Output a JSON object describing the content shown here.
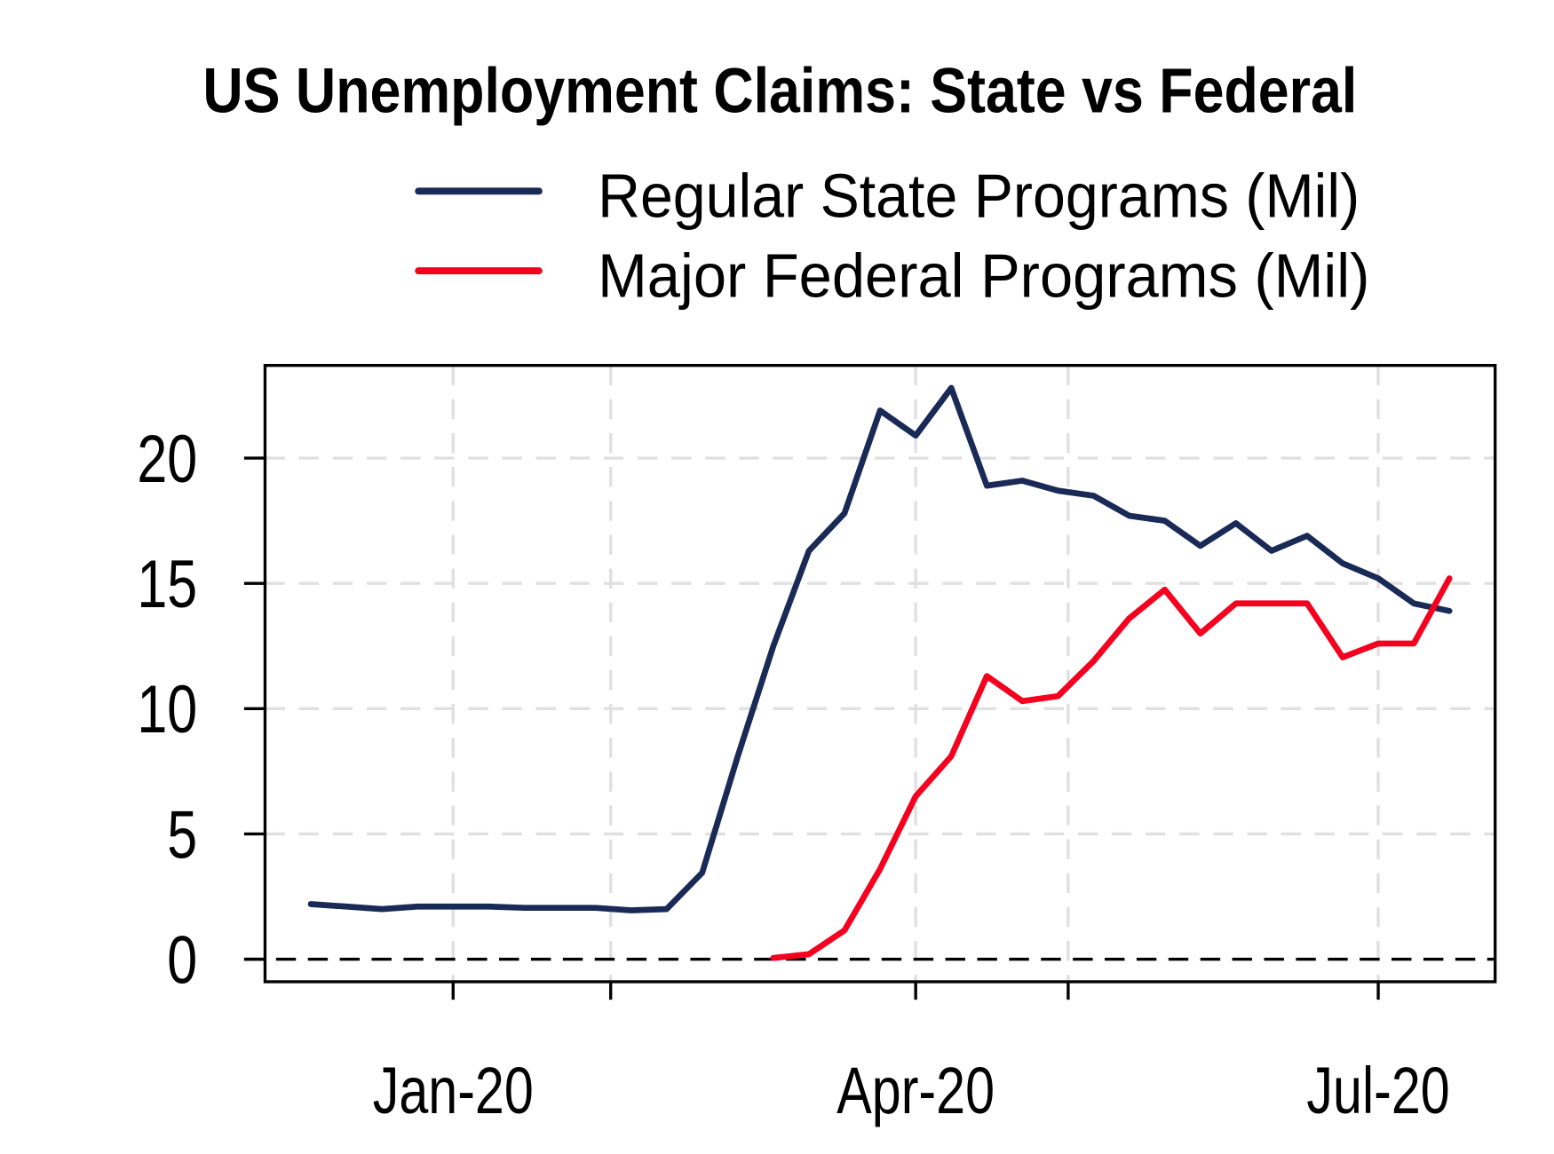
{
  "chart_data": {
    "type": "line",
    "title": "US Unemployment Claims: State vs Federal",
    "xlabel": "",
    "ylabel": "",
    "x": [
      "2019-12-04",
      "2019-12-11",
      "2019-12-18",
      "2019-12-25",
      "2020-01-01",
      "2020-01-08",
      "2020-01-15",
      "2020-01-22",
      "2020-01-29",
      "2020-02-05",
      "2020-02-12",
      "2020-02-19",
      "2020-02-26",
      "2020-03-04",
      "2020-03-11",
      "2020-03-18",
      "2020-03-25",
      "2020-04-01",
      "2020-04-08",
      "2020-04-15",
      "2020-04-22",
      "2020-04-29",
      "2020-05-06",
      "2020-05-13",
      "2020-05-20",
      "2020-05-27",
      "2020-06-03",
      "2020-06-10",
      "2020-06-17",
      "2020-06-24",
      "2020-07-01",
      "2020-07-08",
      "2020-07-15"
    ],
    "series": [
      {
        "name": "Regular State Programs (Mil)",
        "color": "#1a2a57",
        "values": [
          2.2,
          2.1,
          2.0,
          2.1,
          2.1,
          2.1,
          2.05,
          2.05,
          2.05,
          1.95,
          2.0,
          3.45,
          8.1,
          12.5,
          16.3,
          17.8,
          21.9,
          20.9,
          22.8,
          18.9,
          19.1,
          18.7,
          18.5,
          17.7,
          17.5,
          16.5,
          17.4,
          16.3,
          16.9,
          15.8,
          15.2,
          14.2,
          13.9
        ]
      },
      {
        "name": "Major Federal Programs (Mil)",
        "color": "#f5001e",
        "values": [
          null,
          null,
          null,
          null,
          null,
          null,
          null,
          null,
          null,
          null,
          null,
          null,
          null,
          0.05,
          0.2,
          1.15,
          3.6,
          6.5,
          8.1,
          11.3,
          10.3,
          10.5,
          11.9,
          13.6,
          14.75,
          13.0,
          14.2,
          14.2,
          14.2,
          12.05,
          12.6,
          12.6,
          15.2
        ]
      }
    ],
    "xlim": [
      "2019-11-25",
      "2020-07-24"
    ],
    "ylim": [
      -0.9,
      23.7
    ],
    "yticks": [
      0,
      5,
      10,
      15,
      20
    ],
    "ytick_labels": [
      "0",
      "5",
      "10",
      "15",
      "20"
    ],
    "xticks": [
      {
        "date": "2020-01-01",
        "label": "Jan-20"
      },
      {
        "date": "2020-02-01",
        "label": ""
      },
      {
        "date": "2020-04-01",
        "label": "Apr-20"
      },
      {
        "date": "2020-05-01",
        "label": ""
      },
      {
        "date": "2020-07-01",
        "label": "Jul-20"
      }
    ],
    "zero_line": true,
    "grid": true,
    "legend_position": "top"
  }
}
